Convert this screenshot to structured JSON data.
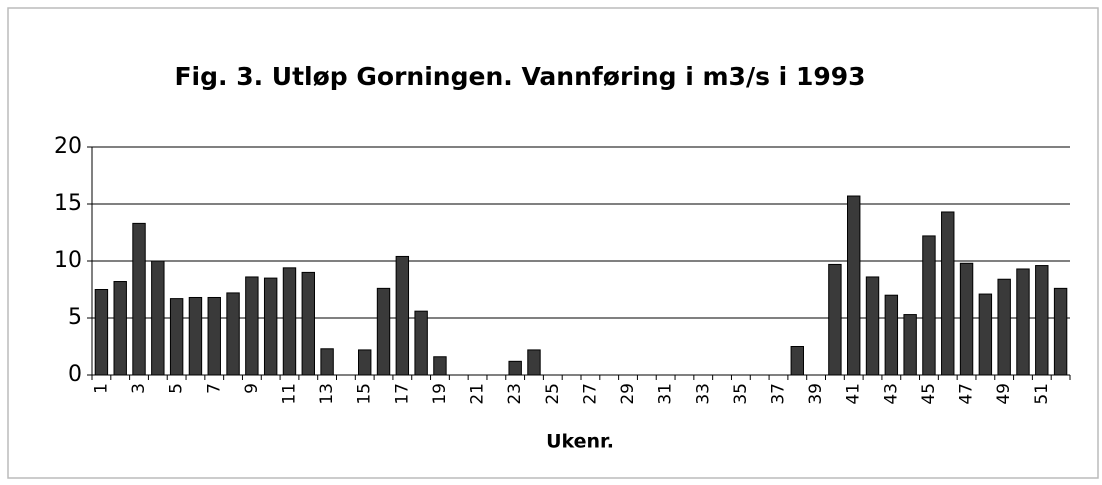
{
  "chart_data": {
    "type": "bar",
    "title": "Fig. 3. Utløp Gorningen. Vannføring i m3/s i 1993",
    "x_label": "Ukenr.",
    "categories": [
      1,
      null,
      3,
      null,
      5,
      null,
      7,
      null,
      9,
      null,
      11,
      null,
      13,
      null,
      15,
      null,
      17,
      null,
      19,
      null,
      21,
      null,
      23,
      null,
      25,
      null,
      27,
      null,
      29,
      null,
      31,
      null,
      33,
      null,
      35,
      null,
      37,
      null,
      39,
      null,
      41,
      null,
      43,
      null,
      45,
      null,
      47,
      null,
      49,
      null,
      51,
      null
    ],
    "values": [
      7.5,
      8.2,
      13.3,
      10,
      6.7,
      6.8,
      6.8,
      7.2,
      8.6,
      8.5,
      9.4,
      9.0,
      2.3,
      0,
      2.2,
      7.6,
      10.4,
      5.6,
      1.6,
      0,
      0,
      0,
      1.2,
      2.2,
      0,
      0,
      0,
      0,
      0,
      0,
      0,
      0,
      0,
      0,
      0,
      0,
      0,
      2.5,
      0,
      9.7,
      15.7,
      8.6,
      7.0,
      5.3,
      12.2,
      14.3,
      9.8,
      7.1,
      8.4,
      9.3,
      9.6,
      7.6
    ],
    "color": "#3a3a3a",
    "ylim": [
      0,
      20
    ],
    "yticks": [
      0,
      5,
      10,
      15,
      20
    ],
    "grid": true
  }
}
